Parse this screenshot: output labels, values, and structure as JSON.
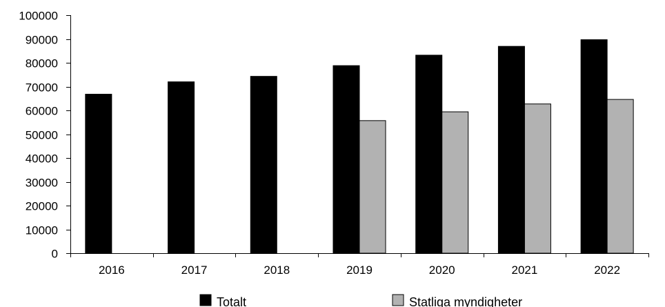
{
  "chart_data": {
    "type": "bar",
    "categories": [
      "2016",
      "2017",
      "2018",
      "2019",
      "2020",
      "2021",
      "2022"
    ],
    "series": [
      {
        "name": "Totalt",
        "color": "#000000",
        "values": [
          66800,
          72000,
          74300,
          78800,
          83200,
          86900,
          89700
        ]
      },
      {
        "name": "Statliga myndigheter",
        "color": "#b2b2b2",
        "values": [
          null,
          null,
          null,
          55700,
          59400,
          62700,
          64600
        ]
      }
    ],
    "yticks": [
      "0",
      "10000",
      "20000",
      "30000",
      "40000",
      "50000",
      "60000",
      "70000",
      "80000",
      "90000",
      "100000"
    ],
    "ylim": [
      0,
      100000
    ],
    "grid": false,
    "legend_position": "bottom",
    "title": "",
    "xlabel": "",
    "ylabel": ""
  }
}
